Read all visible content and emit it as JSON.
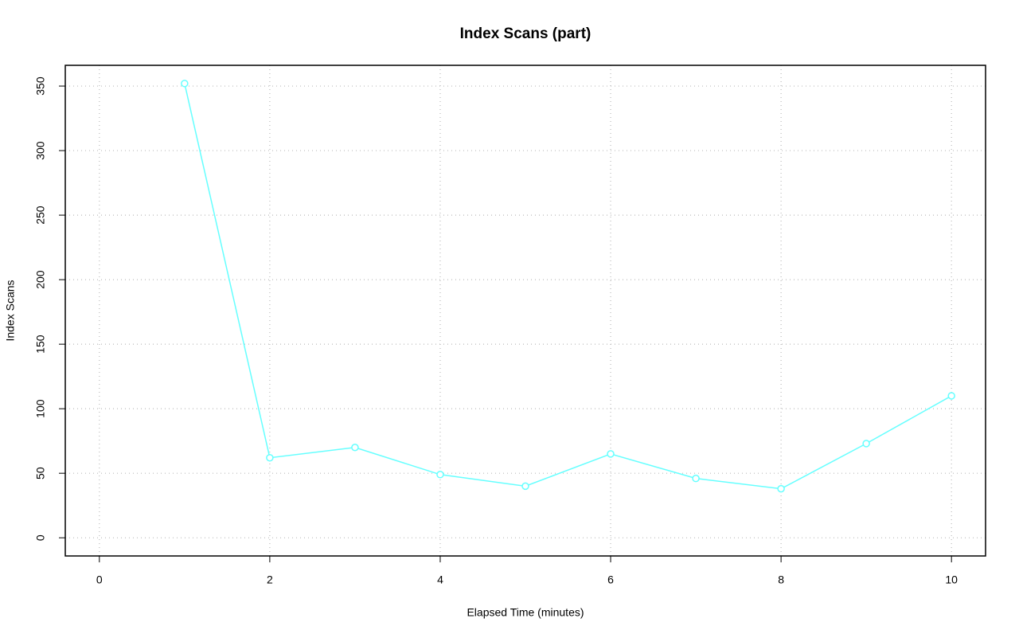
{
  "chart_data": {
    "type": "line",
    "title": "Index Scans (part)",
    "x_label": "Elapsed Time (minutes)",
    "y_label": "Index Scans",
    "x": [
      1,
      2,
      3,
      4,
      5,
      6,
      7,
      8,
      9,
      10
    ],
    "series": [
      {
        "name": "Index Scans",
        "color": "#66ffff",
        "values": [
          352,
          62,
          70,
          49,
          40,
          65,
          46,
          38,
          73,
          110
        ]
      }
    ],
    "xlim": [
      -0.4,
      10.4
    ],
    "xticks": [
      0,
      2,
      4,
      6,
      8,
      10
    ],
    "ylim": [
      -14.08,
      366.08
    ],
    "yticks": [
      0,
      50,
      100,
      150,
      200,
      250,
      300,
      350
    ],
    "grid": true
  }
}
